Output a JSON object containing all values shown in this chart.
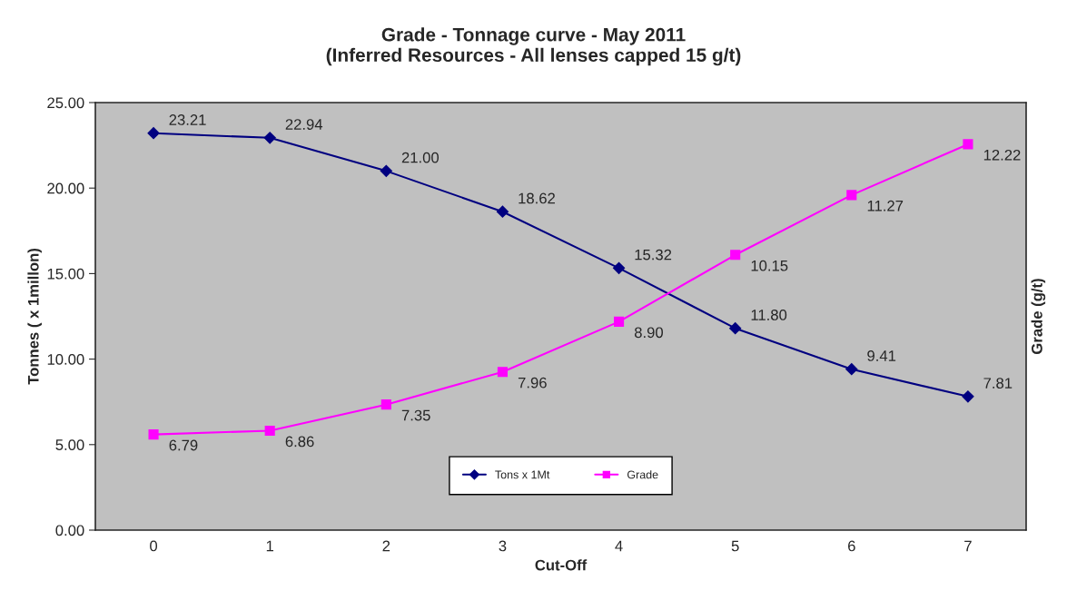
{
  "chart_data": {
    "type": "line",
    "title": "Grade - Tonnage curve - May 2011\n(Inferred Resources - All lenses capped 15 g/t)",
    "xlabel": "Cut-Off",
    "ylabel": "Tonnes ( x 1millon)",
    "y2label": "Grade (g/t)",
    "categories": [
      "0",
      "1",
      "2",
      "3",
      "4",
      "5",
      "6",
      "7"
    ],
    "series": [
      {
        "name": "Tons x 1Mt",
        "color": "#000080",
        "marker": "diamond",
        "values": [
          23.21,
          22.94,
          21.0,
          18.62,
          15.32,
          11.8,
          9.41,
          7.81
        ],
        "value_labels": [
          "23.21",
          "22.94",
          "21.00",
          "18.62",
          "15.32",
          "11.80",
          "9.41",
          "7.81"
        ]
      },
      {
        "name": "Grade",
        "color": "#ff00ff",
        "marker": "square",
        "axis": "y2",
        "values": [
          6.79,
          6.86,
          7.35,
          7.96,
          8.9,
          10.15,
          11.27,
          12.22
        ],
        "value_labels": [
          "6.79",
          "6.86",
          "7.35",
          "7.96",
          "8.90",
          "10.15",
          "11.27",
          "12.22"
        ]
      }
    ],
    "ylim": [
      0,
      25
    ],
    "yticks": [
      {
        "value": 0,
        "label": "0.00"
      },
      {
        "value": 5,
        "label": "5.00"
      },
      {
        "value": 10,
        "label": "10.00"
      },
      {
        "value": 15,
        "label": "15.00"
      },
      {
        "value": 20,
        "label": "20.00"
      },
      {
        "value": 25,
        "label": "25.00"
      }
    ],
    "y2lim": [
      5,
      13
    ],
    "legend": "bottom",
    "grid": false
  }
}
